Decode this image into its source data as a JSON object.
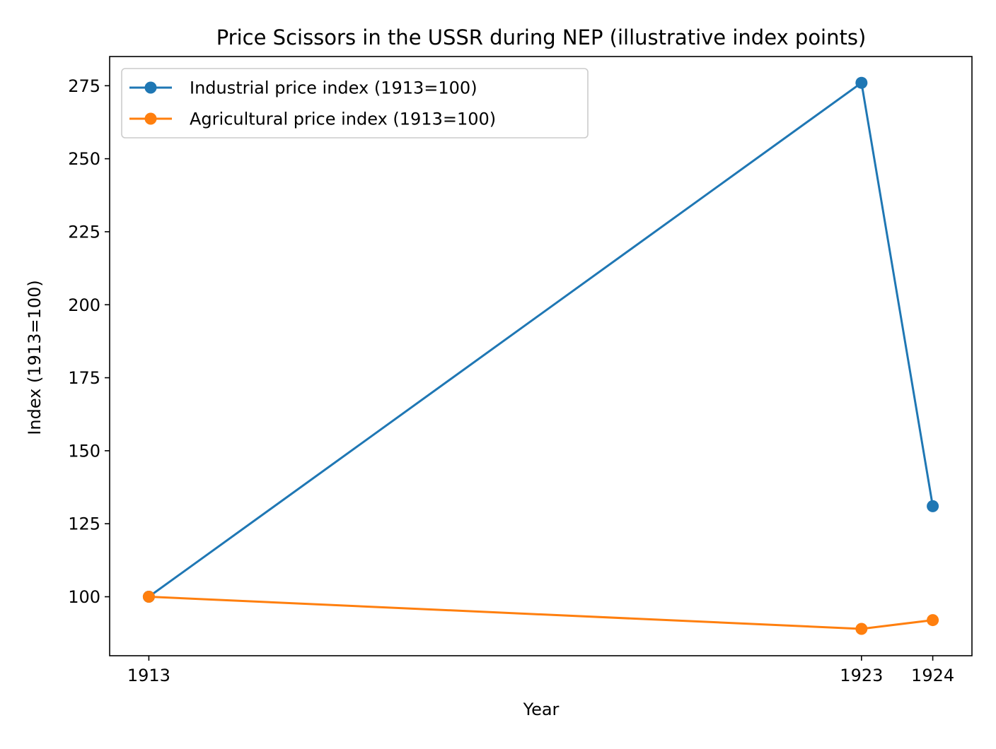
{
  "chart_data": {
    "type": "line",
    "title": "Price Scissors in the USSR during NEP (illustrative index points)",
    "xlabel": "Year",
    "ylabel": "Index (1913=100)",
    "x": [
      1913,
      1923,
      1924
    ],
    "x_tick_labels": [
      "1913",
      "1923",
      "1924"
    ],
    "xlim": [
      1912.45,
      1924.55
    ],
    "ylim": [
      79.8,
      285
    ],
    "y_ticks": [
      100,
      125,
      150,
      175,
      200,
      225,
      250,
      275
    ],
    "grid": false,
    "legend_position": "upper left",
    "series": [
      {
        "name": "Industrial price index (1913=100)",
        "color": "#1f77b4",
        "marker": "circle",
        "values": [
          100,
          276,
          131
        ]
      },
      {
        "name": "Agricultural price index (1913=100)",
        "color": "#ff7f0e",
        "marker": "circle",
        "values": [
          100,
          89,
          92
        ]
      }
    ]
  }
}
